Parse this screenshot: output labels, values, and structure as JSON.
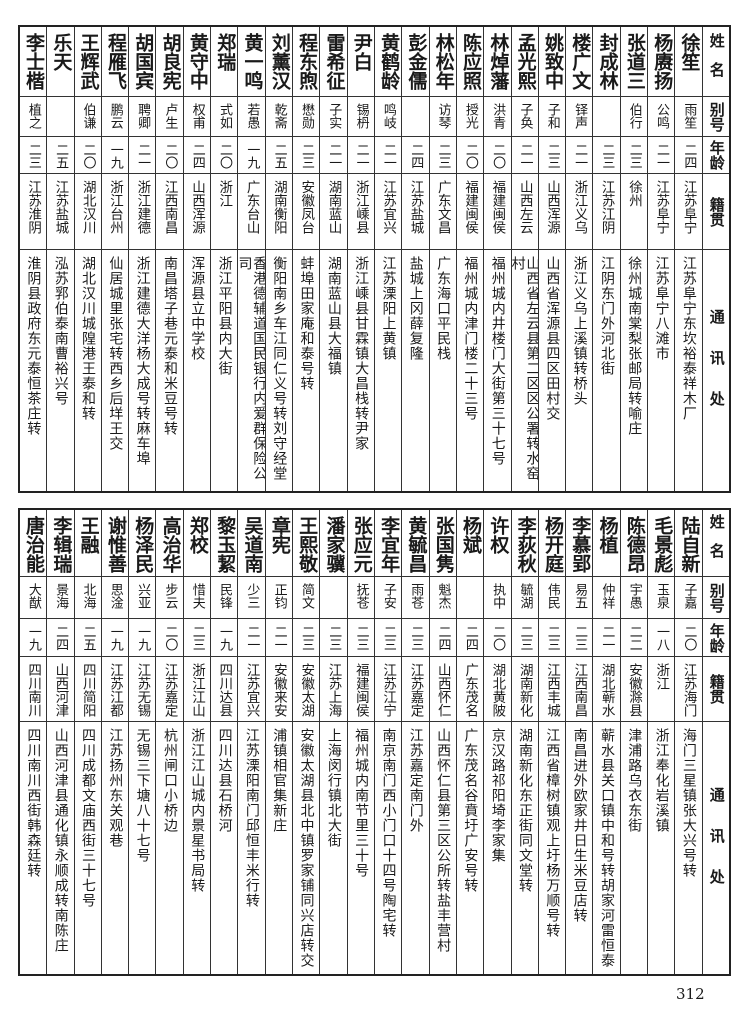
{
  "headers": {
    "name": "姓名",
    "alias": "别号",
    "age": "年龄",
    "place": "籍贯",
    "addr": "通讯处"
  },
  "tables": [
    [
      {
        "name": "徐笙",
        "alias": "雨笙",
        "age": "二四",
        "place": "江苏阜宁",
        "addr": "江苏阜宁东坎裕泰祥木厂"
      },
      {
        "name": "杨赓扬",
        "alias": "公鸣",
        "age": "二一",
        "place": "江苏阜宁",
        "addr": "江苏阜宁八滩市"
      },
      {
        "name": "张道三",
        "alias": "伯行",
        "age": "二三",
        "place": "徐州",
        "addr": "徐州城南棠梨张邮局转喻庄"
      },
      {
        "name": "封成林",
        "alias": "",
        "age": "二三",
        "place": "江苏江阴",
        "addr": "江阴东门外河北街"
      },
      {
        "name": "楼广文",
        "alias": "铎声",
        "age": "二一",
        "place": "浙江义乌",
        "addr": "浙江义乌上溪镇转桥头"
      },
      {
        "name": "姚致中",
        "alias": "子和",
        "age": "二三",
        "place": "山西浑源",
        "addr": "山西省浑源县四区田村交"
      },
      {
        "name": "孟光熙",
        "alias": "子奂",
        "age": "二一",
        "place": "山西左云",
        "addr": "山西省左云县第二区区公署转水窑村"
      },
      {
        "name": "林焯藩",
        "alias": "洪青",
        "age": "二〇",
        "place": "福建闽侯",
        "addr": "福州城内井楼门大街第三十七号"
      },
      {
        "name": "陈应照",
        "alias": "授光",
        "age": "二〇",
        "place": "福建闽侯",
        "addr": "福州城内津门楼二十三号"
      },
      {
        "name": "林松年",
        "alias": "访琴",
        "age": "二三",
        "place": "广东文昌",
        "addr": "广东海口平民栈"
      },
      {
        "name": "彭金儒",
        "alias": "",
        "age": "二四",
        "place": "江苏盐城",
        "addr": "盐城上冈薛复隆"
      },
      {
        "name": "黄鹤龄",
        "alias": "鸣岐",
        "age": "二一",
        "place": "江苏宜兴",
        "addr": "江苏溧阳上黄镇"
      },
      {
        "name": "尹白",
        "alias": "锡枬",
        "age": "二一",
        "place": "浙江嵊县",
        "addr": "浙江嵊县甘霖镇大昌栈转尹家"
      },
      {
        "name": "雷希征",
        "alias": "子实",
        "age": "二一",
        "place": "湖南蓝山",
        "addr": "湖南蓝山县大福镇"
      },
      {
        "name": "程东煦",
        "alias": "懋勋",
        "age": "二三",
        "place": "安徽凤台",
        "addr": "蚌埠田家庵和泰号转"
      },
      {
        "name": "刘薰汉",
        "alias": "乾斋",
        "age": "二五",
        "place": "湖南衡阳",
        "addr": "衡阳南乡车江同仁义号转刘守经堂"
      },
      {
        "name": "黄一鸣",
        "alias": "若愚",
        "age": "一九",
        "place": "广东台山",
        "addr": "香港德辅道国民银行内爱群保险公司"
      },
      {
        "name": "郑瑞",
        "alias": "式如",
        "age": "二〇",
        "place": "浙江",
        "addr": "浙江平阳县内大街"
      },
      {
        "name": "黄守中",
        "alias": "权甫",
        "age": "二四",
        "place": "山西浑源",
        "addr": "浑源县立中学校"
      },
      {
        "name": "胡良宪",
        "alias": "卢生",
        "age": "二〇",
        "place": "江西南昌",
        "addr": "南昌塔子巷元泰和米豆号转"
      },
      {
        "name": "胡国宾",
        "alias": "聘卿",
        "age": "二一",
        "place": "浙江建德",
        "addr": "浙江建德大洋杨大成号转麻车埠"
      },
      {
        "name": "程雁飞",
        "alias": "鹏云",
        "age": "一九",
        "place": "浙江台州",
        "addr": "仙居城里张宅转西乡后垟王交"
      },
      {
        "name": "王辉武",
        "alias": "伯谦",
        "age": "二〇",
        "place": "湖北汉川",
        "addr": "湖北汉川城隍港王泰和转"
      },
      {
        "name": "乐天",
        "alias": "",
        "age": "二五",
        "place": "江苏盐城",
        "addr": "泓苏郛伯泰南曹裕兴号"
      },
      {
        "name": "李士楷",
        "alias": "植之",
        "age": "二三",
        "place": "江苏淮阴",
        "addr": "淮阴县政府东元泰恒茶庄转"
      }
    ],
    [
      {
        "name": "陆自新",
        "alias": "子嘉",
        "age": "二〇",
        "place": "江苏海门",
        "addr": "海门三星镇张大兴号转"
      },
      {
        "name": "毛景彪",
        "alias": "玉泉",
        "age": "一八",
        "place": "浙江",
        "addr": "浙江奉化岩溪镇"
      },
      {
        "name": "陈德昂",
        "alias": "宇愚",
        "age": "二二",
        "place": "安徽滁县",
        "addr": "津浦路乌衣东街"
      },
      {
        "name": "杨植",
        "alias": "仲祥",
        "age": "二一",
        "place": "湖北蕲水",
        "addr": "蕲水县关口镇中和号转胡家河雷恒泰"
      },
      {
        "name": "李慕郢",
        "alias": "易五",
        "age": "二三",
        "place": "江西南昌",
        "addr": "南昌进外欧家井日生米豆店转"
      },
      {
        "name": "杨开庭",
        "alias": "伟民",
        "age": "二三",
        "place": "江西丰城",
        "addr": "江西省樟树镇观上圩杨万顺号转"
      },
      {
        "name": "李荻秋",
        "alias": "毓湖",
        "age": "二三",
        "place": "湖南新化",
        "addr": "湖南新化东正街同文堂转"
      },
      {
        "name": "许权",
        "alias": "执中",
        "age": "二〇",
        "place": "湖北黄陂",
        "addr": "京汉路祁阳埼李家集"
      },
      {
        "name": "杨斌",
        "alias": "",
        "age": "二四",
        "place": "广东茂名",
        "addr": "广东茂名谷賁圩广安号转"
      },
      {
        "name": "张国隽",
        "alias": "魁杰",
        "age": "二四",
        "place": "山西怀仁",
        "addr": "山西怀仁县第三区公所转盐丰营村"
      },
      {
        "name": "黄毓昌",
        "alias": "雨苍",
        "age": "二三",
        "place": "江苏嘉定",
        "addr": "江苏嘉定南门外"
      },
      {
        "name": "李宜年",
        "alias": "子安",
        "age": "二三",
        "place": "江苏江宁",
        "addr": "南京南门西小门口十四号陶宅转"
      },
      {
        "name": "张应元",
        "alias": "抚苍",
        "age": "二三",
        "place": "福建闽侯",
        "addr": "福州城内南节里三十号"
      },
      {
        "name": "潘家骥",
        "alias": "",
        "age": "二三",
        "place": "江苏上海",
        "addr": "上海闵行镇北大街"
      },
      {
        "name": "王熙敬",
        "alias": "简文",
        "age": "二三",
        "place": "安徽太湖",
        "addr": "安徽太湖县北中镇罗家铺同兴店转交"
      },
      {
        "name": "章宪",
        "alias": "正钧",
        "age": "二一",
        "place": "安徽来安",
        "addr": "浦镇相官集新庄"
      },
      {
        "name": "吴道南",
        "alias": "少三",
        "age": "二一",
        "place": "江苏宜兴",
        "addr": "江苏溧阳南门邱恒丰米行转"
      },
      {
        "name": "黎玉絜",
        "alias": "民锋",
        "age": "一九",
        "place": "四川达县",
        "addr": "四川达县石桥河"
      },
      {
        "name": "郑校",
        "alias": "惜夫",
        "age": "二三",
        "place": "浙江江山",
        "addr": "浙江江山城内景星书局转"
      },
      {
        "name": "高治华",
        "alias": "步云",
        "age": "二〇",
        "place": "江苏嘉定",
        "addr": "杭州闸口小桥边"
      },
      {
        "name": "杨泽民",
        "alias": "兴亚",
        "age": "一九",
        "place": "江苏无锡",
        "addr": "无锡三下塘八十七号"
      },
      {
        "name": "谢惟善",
        "alias": "思淦",
        "age": "一九",
        "place": "江苏江都",
        "addr": "江苏扬州东关观巷"
      },
      {
        "name": "王融",
        "alias": "北海",
        "age": "二五",
        "place": "四川简阳",
        "addr": "四川成都文庙西街三十七号"
      },
      {
        "name": "李辑瑞",
        "alias": "景海",
        "age": "二四",
        "place": "山西河津",
        "addr": "山西河津县通化镇永顺成转南陈庄"
      },
      {
        "name": "唐治能",
        "alias": "大猷",
        "age": "一九",
        "place": "四川南川",
        "addr": "四川南川西街韩森廷转"
      }
    ]
  ],
  "page_number": "312"
}
